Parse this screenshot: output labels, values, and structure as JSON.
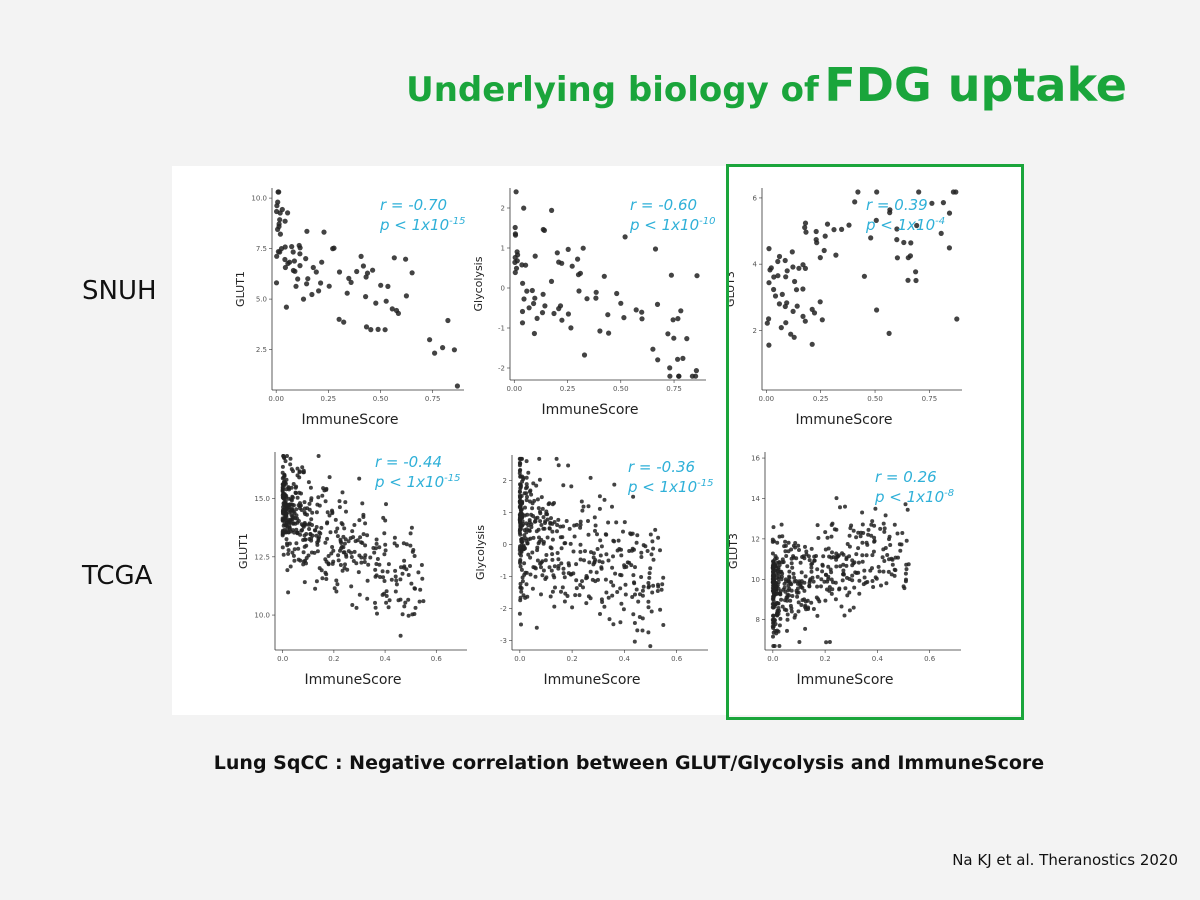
{
  "title": {
    "part1": "Underlying biology of",
    "part2": "FDG uptake"
  },
  "row_labels": [
    "SNUH",
    "TCGA"
  ],
  "caption": "Lung SqCC : Negative correlation between GLUT/Glycolysis and ImmuneScore",
  "citation": "Na KJ et al. Theranostics 2020",
  "colors": {
    "title": "#1aa53b",
    "stat": "#2fb0d8",
    "points": "#222222",
    "highlight_box": "#1aa53b"
  },
  "highlight": "GLUT3 column",
  "chart_data": [
    {
      "type": "scatter",
      "cohort": "SNUH",
      "xlabel": "ImmuneScore",
      "ylabel": "GLUT1",
      "xlim": [
        -0.02,
        0.9
      ],
      "ylim": [
        0.5,
        10.5
      ],
      "xticks": [
        "0.00",
        "0.25",
        "0.50",
        "0.75"
      ],
      "yticks": [
        "2.5",
        "5.0",
        "7.5",
        "10.0"
      ],
      "stat": {
        "r": "r = -0.70",
        "p": "p < 1x10",
        "exp": "-15"
      },
      "points": {
        "seed": 11,
        "n": 85,
        "intercept": 8.2,
        "slope": -6.5,
        "noise": 1.3,
        "xmax": 0.88,
        "xskew": 1.6
      }
    },
    {
      "type": "scatter",
      "cohort": "SNUH",
      "xlabel": "ImmuneScore",
      "ylabel": "Glycolysis",
      "xlim": [
        -0.02,
        0.9
      ],
      "ylim": [
        -2.3,
        2.5
      ],
      "xticks": [
        "0.00",
        "0.25",
        "0.50",
        "0.75"
      ],
      "yticks": [
        "-2",
        "-1",
        "0",
        "1",
        "2"
      ],
      "stat": {
        "r": "r = -0.60",
        "p": "p < 1x10",
        "exp": "-10"
      },
      "points": {
        "seed": 23,
        "n": 85,
        "intercept": 0.9,
        "slope": -2.8,
        "noise": 0.8,
        "xmax": 0.86,
        "xskew": 1.6
      }
    },
    {
      "type": "scatter",
      "cohort": "SNUH",
      "xlabel": "ImmuneScore",
      "ylabel": "GLUT3",
      "xlim": [
        -0.02,
        0.9
      ],
      "ylim": [
        0.2,
        6.3
      ],
      "xticks": [
        "0.00",
        "0.25",
        "0.50",
        "0.75"
      ],
      "yticks": [
        "2",
        "4",
        "6"
      ],
      "stat": {
        "r": "r = 0.39",
        "p": "p < 1x10",
        "exp": "-4"
      },
      "points": {
        "seed": 37,
        "n": 85,
        "intercept": 2.9,
        "slope": 2.6,
        "noise": 1.2,
        "xmax": 0.88,
        "xskew": 1.6
      }
    },
    {
      "type": "scatter",
      "cohort": "TCGA",
      "xlabel": "ImmuneScore",
      "ylabel": "GLUT1",
      "xlim": [
        -0.03,
        0.72
      ],
      "ylim": [
        8.5,
        17.0
      ],
      "xticks": [
        "0.0",
        "0.2",
        "0.4",
        "0.6"
      ],
      "yticks": [
        "10.0",
        "12.5",
        "15.0"
      ],
      "stat": {
        "r": "r = -0.44",
        "p": "p < 1x10",
        "exp": "-15"
      },
      "points": {
        "seed": 51,
        "n": 460,
        "intercept": 14.6,
        "slope": -6.0,
        "noise": 1.1,
        "xmax": 0.55,
        "xskew": 2.2
      }
    },
    {
      "type": "scatter",
      "cohort": "TCGA",
      "xlabel": "ImmuneScore",
      "ylabel": "Glycolysis",
      "xlim": [
        -0.03,
        0.72
      ],
      "ylim": [
        -3.3,
        2.8
      ],
      "xticks": [
        "0.0",
        "0.2",
        "0.4",
        "0.6"
      ],
      "yticks": [
        "-3",
        "-2",
        "-1",
        "0",
        "1",
        "2"
      ],
      "stat": {
        "r": "r = -0.36",
        "p": "p < 1x10",
        "exp": "-15"
      },
      "points": {
        "seed": 67,
        "n": 460,
        "intercept": 0.6,
        "slope": -3.6,
        "noise": 0.95,
        "xmax": 0.55,
        "xskew": 2.2
      }
    },
    {
      "type": "scatter",
      "cohort": "TCGA",
      "xlabel": "ImmuneScore",
      "ylabel": "GLUT3",
      "xlim": [
        -0.03,
        0.72
      ],
      "ylim": [
        6.5,
        16.3
      ],
      "xticks": [
        "0.0",
        "0.2",
        "0.4",
        "0.6"
      ],
      "yticks": [
        "8",
        "10",
        "12",
        "14",
        "16"
      ],
      "stat": {
        "r": "r = 0.26",
        "p": "p < 1x10",
        "exp": "-8"
      },
      "points": {
        "seed": 83,
        "n": 460,
        "intercept": 9.6,
        "slope": 4.0,
        "noise": 1.2,
        "xmax": 0.52,
        "xskew": 2.2
      }
    }
  ]
}
